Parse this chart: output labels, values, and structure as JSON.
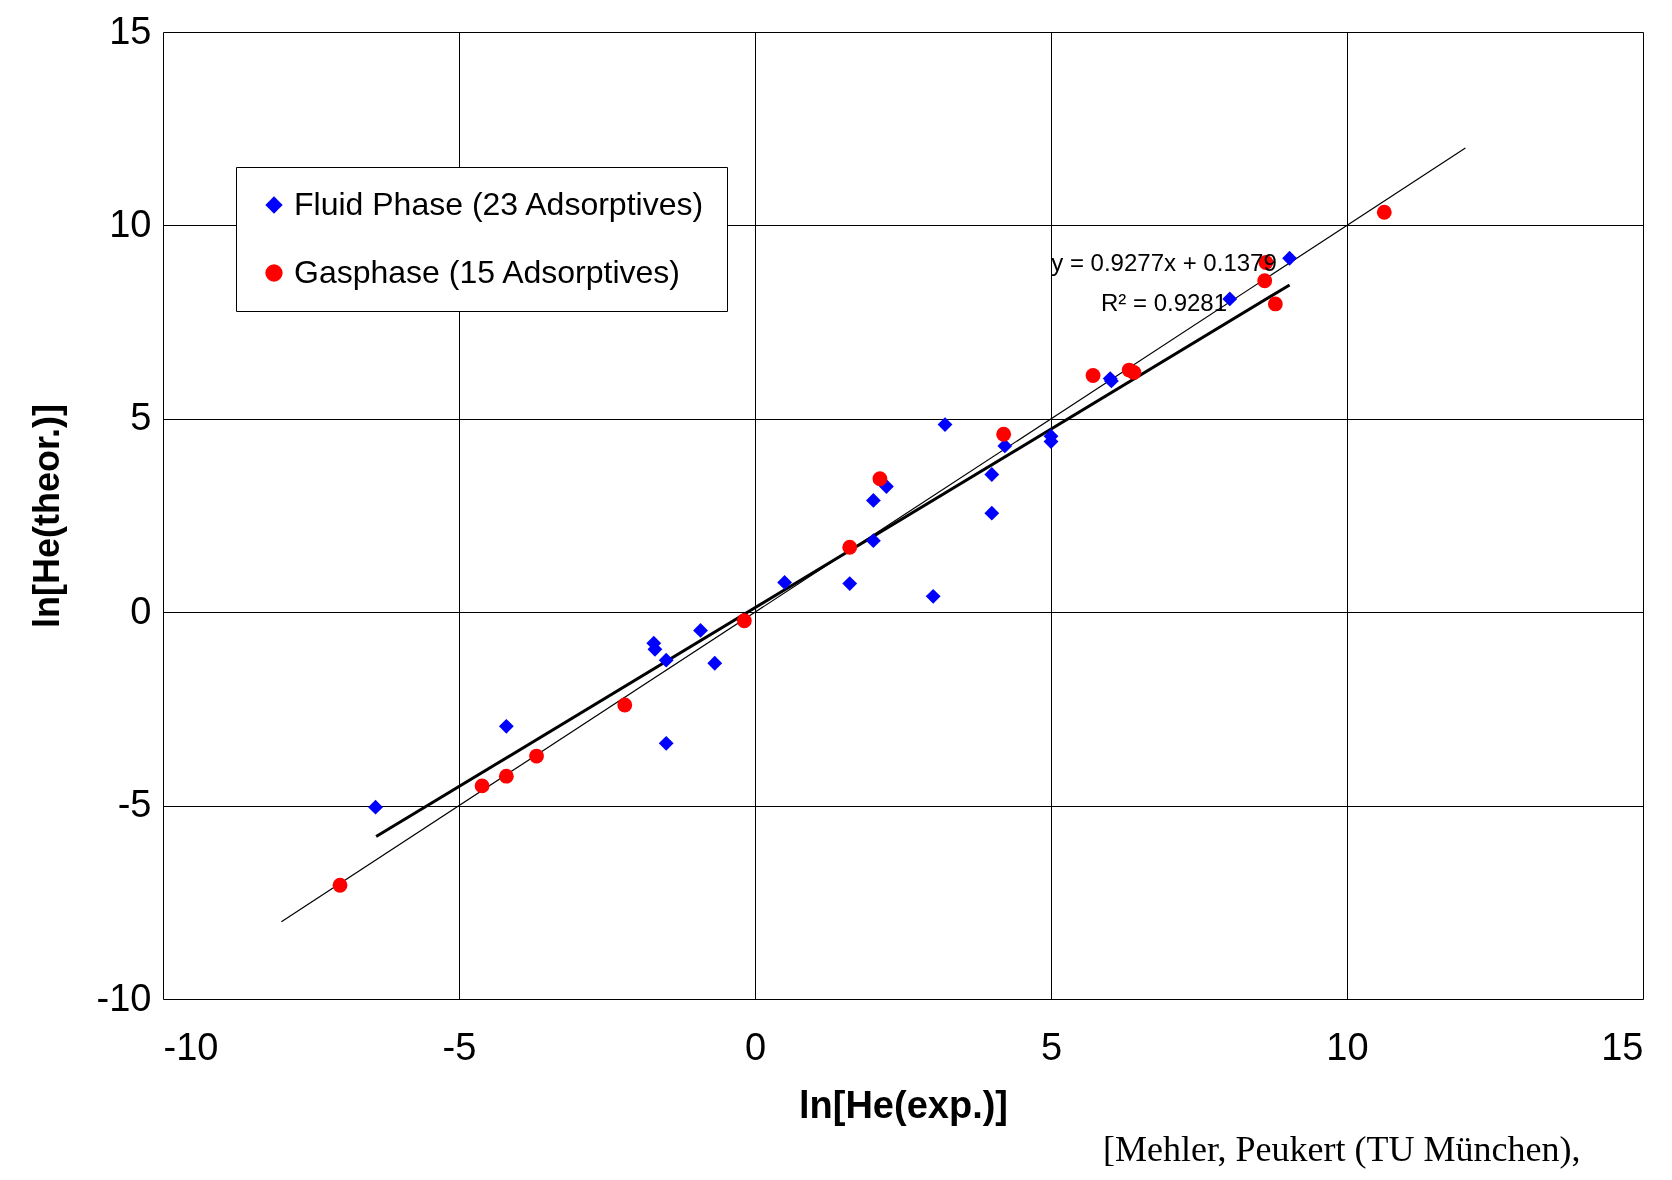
{
  "chart_data": {
    "type": "scatter",
    "xlabel": "ln[He(exp.)]",
    "ylabel": "ln[He(theor.)]",
    "xlim": [
      -10,
      15
    ],
    "ylim": [
      -10,
      15
    ],
    "xticks": [
      -10,
      -5,
      0,
      5,
      10,
      15
    ],
    "yticks": [
      -10,
      -5,
      0,
      5,
      10,
      15
    ],
    "grid": true,
    "legend": "top left",
    "series": [
      {
        "name": "Fluid Phase (23 Adsorptives)",
        "color": "#0000ff",
        "marker": "diamond",
        "x": [
          -6.41,
          -4.2,
          -1.71,
          -1.69,
          -1.5,
          -1.5,
          -0.92,
          -0.68,
          0.5,
          1.6,
          2.0,
          2.0,
          2.22,
          3.01,
          3.21,
          4.0,
          4.0,
          4.22,
          5.0,
          5.0,
          6.0,
          6.02,
          8.02,
          9.03
        ],
        "values": [
          -5.04,
          -2.95,
          -0.8,
          -0.96,
          -1.24,
          -3.39,
          -0.47,
          -1.32,
          0.77,
          0.74,
          2.89,
          1.85,
          3.25,
          0.41,
          4.85,
          3.56,
          2.56,
          4.3,
          4.55,
          4.41,
          6.04,
          5.98,
          8.1,
          9.15
        ]
      },
      {
        "name": "Gasphase (15 Adsorptives)",
        "color": "#ff0000",
        "marker": "circle",
        "x": [
          -7.01,
          -4.61,
          -4.2,
          -3.69,
          -2.2,
          -0.18,
          1.6,
          2.11,
          4.2,
          5.71,
          6.32,
          6.4,
          8.61,
          8.63,
          8.79,
          10.63
        ],
        "values": [
          -7.06,
          -4.49,
          -4.24,
          -3.72,
          -2.4,
          -0.22,
          1.68,
          3.45,
          4.6,
          6.12,
          6.26,
          6.2,
          8.57,
          9.04,
          7.97,
          10.34
        ]
      },
      {
        "type": "line",
        "color": "#000000",
        "x": [
          -8,
          12
        ],
        "values": [
          -8,
          12
        ]
      },
      {
        "type": "line",
        "color": "#000000",
        "x": [
          -6.4,
          9.03
        ],
        "values": [
          -5.8,
          8.46
        ]
      }
    ],
    "annotations": [
      "y = 0.9277x + 0.1379",
      "R² = 0.9281",
      "[Mehler, Peukert (TU München),"
    ]
  }
}
